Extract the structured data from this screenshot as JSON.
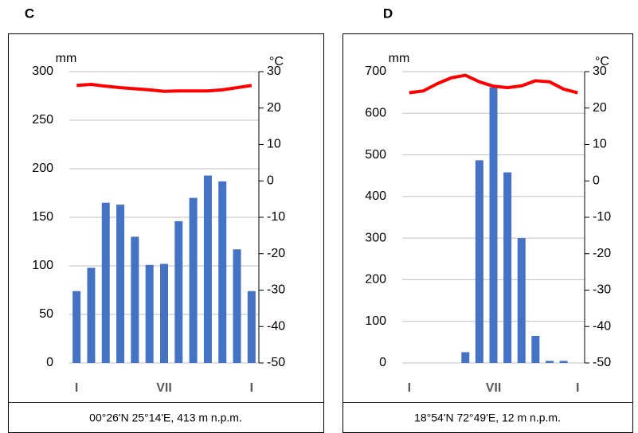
{
  "chart_data": [
    {
      "type": "bar",
      "title": "C",
      "ylabel": "mm",
      "y2label": "°C",
      "footer": "00°26'N 25°14'E, 413 m n.p.m.",
      "categories": [
        "I",
        null,
        null,
        null,
        null,
        null,
        "VII",
        null,
        null,
        null,
        null,
        null,
        "I"
      ],
      "series": [
        {
          "type": "bar",
          "color": "#4472c4",
          "values": [
            74,
            98,
            165,
            163,
            130,
            101,
            102,
            146,
            170,
            193,
            187,
            117,
            74
          ]
        },
        {
          "type": "line",
          "color": "#ff0000",
          "axis": "y2",
          "values": [
            26.2,
            26.5,
            26,
            25.6,
            25.3,
            25,
            24.6,
            24.7,
            24.7,
            24.7,
            25,
            25.6,
            26.2
          ]
        }
      ],
      "ylim": [
        0,
        300
      ],
      "yticks": [
        0,
        50,
        100,
        150,
        200,
        250,
        300
      ],
      "y2lim": [
        -50,
        30
      ],
      "y2ticks": [
        -50,
        -40,
        -30,
        -20,
        -10,
        0,
        10,
        20,
        30
      ],
      "grid": true
    },
    {
      "type": "bar",
      "title": "D",
      "ylabel": "mm",
      "y2label": "°C",
      "footer": "18°54'N 72°49'E, 12 m n.p.m.",
      "categories": [
        "I",
        null,
        null,
        null,
        null,
        null,
        "VII",
        null,
        null,
        null,
        null,
        null,
        "I"
      ],
      "series": [
        {
          "type": "bar",
          "color": "#4472c4",
          "values": [
            0,
            0,
            0,
            0,
            26,
            487,
            662,
            458,
            300,
            65,
            5,
            5,
            0
          ]
        },
        {
          "type": "line",
          "color": "#ff0000",
          "axis": "y2",
          "values": [
            24.2,
            24.7,
            26.7,
            28.3,
            29,
            27.2,
            26,
            25.6,
            26.1,
            27.5,
            27.2,
            25.2,
            24.2
          ]
        }
      ],
      "ylim": [
        0,
        700
      ],
      "yticks": [
        0,
        100,
        200,
        300,
        400,
        500,
        600,
        700
      ],
      "y2lim": [
        -50,
        30
      ],
      "y2ticks": [
        -50,
        -40,
        -30,
        -20,
        -10,
        0,
        10,
        20,
        30
      ],
      "grid": true
    }
  ]
}
